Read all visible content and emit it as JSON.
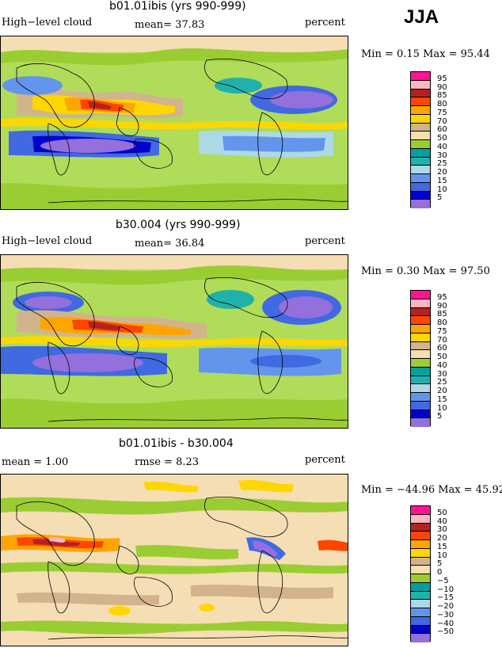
{
  "season": "JJA",
  "panels": [
    {
      "title": "b01.01ibis (yrs 990-999)",
      "field_label": "High−level cloud",
      "stat_label": "mean=  37.83",
      "units": "percent",
      "minmax": "Min =    0.15 Max =  95.44",
      "legend": [
        "95",
        "90",
        "85",
        "80",
        "75",
        "70",
        "60",
        "50",
        "40",
        "30",
        "25",
        "20",
        "15",
        "10",
        "5"
      ]
    },
    {
      "title": "b30.004 (yrs 990-999)",
      "field_label": "High−level cloud",
      "stat_label": "mean=  36.84",
      "units": "percent",
      "minmax": "Min =    0.30 Max =  97.50",
      "legend": [
        "95",
        "90",
        "85",
        "80",
        "75",
        "70",
        "60",
        "50",
        "40",
        "30",
        "25",
        "20",
        "15",
        "10",
        "5"
      ]
    },
    {
      "title": "b01.01ibis - b30.004",
      "field_label": "mean =    1.00",
      "stat_label": "rmse =    8.23",
      "units": "percent",
      "minmax": "Min = −44.96 Max =  45.92",
      "legend": [
        "50",
        "40",
        "30",
        "20",
        "15",
        "10",
        "5",
        "0",
        "−5",
        "−10",
        "−15",
        "−20",
        "−30",
        "−40",
        "−50"
      ]
    }
  ],
  "colors": {
    "abs_scale": [
      "#ff1493",
      "#ffb6c1",
      "#b22222",
      "#ff4500",
      "#ffa500",
      "#ffd700",
      "#d2b48c",
      "#f5deb3",
      "#9acd32",
      "#00a0a0",
      "#20b2aa",
      "#add8e6",
      "#6495ed",
      "#4169e1",
      "#0000cd",
      "#9370db"
    ],
    "diff_scale": [
      "#ff1493",
      "#ffb6c1",
      "#b22222",
      "#ff4500",
      "#ffa500",
      "#ffd700",
      "#d2b48c",
      "#f5deb3",
      "#9acd32",
      "#00a0a0",
      "#20b2aa",
      "#add8e6",
      "#6495ed",
      "#4169e1",
      "#0000cd",
      "#9370db"
    ]
  }
}
